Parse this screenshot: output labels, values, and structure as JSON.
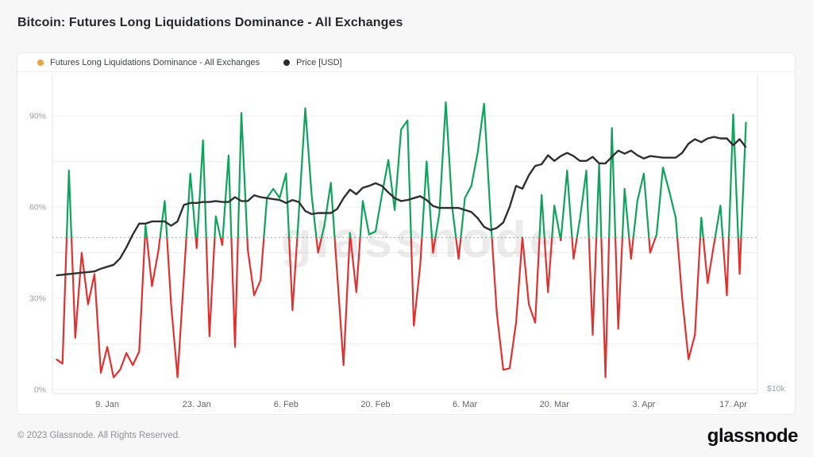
{
  "header": {
    "title": "Bitcoin: Futures Long Liquidations Dominance - All Exchanges"
  },
  "legend": [
    {
      "label": "Futures Long Liquidations Dominance - All Exchanges",
      "color": "#f0a33c"
    },
    {
      "label": "Price [USD]",
      "color": "#2b2b2b"
    }
  ],
  "footer": {
    "copyright": "© 2023 Glassnode. All Rights Reserved.",
    "logo_text": "glassnode"
  },
  "chart_data": {
    "type": "line",
    "title": "Bitcoin: Futures Long Liquidations Dominance - All Exchanges",
    "watermark": "glassnode",
    "x_tick_labels": [
      "9. Jan",
      "23. Jan",
      "6. Feb",
      "20. Feb",
      "6. Mar",
      "20. Mar",
      "3. Apr",
      "17. Apr"
    ],
    "x_tick_day_index": [
      8,
      22,
      36,
      50,
      64,
      78,
      92,
      106
    ],
    "y_left": {
      "unit": "%",
      "tick_labels": [
        "0%",
        "30%",
        "60%",
        "90%"
      ],
      "tick_values": [
        0,
        30,
        60,
        90
      ],
      "grid_values": [
        0,
        15,
        30,
        45,
        60,
        75,
        90
      ],
      "range": [
        0,
        105
      ]
    },
    "y_right": {
      "tick_label": "$10k",
      "scale": "log",
      "base_usd": 10000,
      "pct_per_decade": 170.5
    },
    "threshold_pct": 50,
    "grid": true,
    "legend_position": "top-left",
    "series": [
      {
        "name": "Futures Long Liquidations Dominance - All Exchanges",
        "unit": "%",
        "style": "threshold-line",
        "color_above": "#0fa35e",
        "color_below": "#e03131",
        "threshold": 50,
        "values": [
          10,
          8.5,
          72,
          17,
          45,
          28,
          38,
          5.5,
          14,
          4,
          6.5,
          12,
          8,
          12.5,
          54,
          34,
          45.5,
          62,
          28,
          4,
          37,
          71,
          46.5,
          82,
          17.5,
          57,
          47.5,
          77,
          14,
          91,
          46,
          31,
          36,
          63,
          66,
          63,
          71,
          26,
          58,
          92.5,
          64,
          45,
          54,
          68,
          38,
          8,
          51.5,
          32,
          62,
          51,
          52,
          64,
          75.5,
          59,
          85.5,
          88.5,
          21,
          41,
          75,
          45,
          58,
          94.5,
          60,
          43,
          63,
          67,
          78,
          94,
          57,
          25,
          6.5,
          7,
          22,
          50,
          28,
          22,
          64,
          32,
          60.5,
          49,
          72,
          43,
          56,
          72,
          18,
          74,
          4,
          86,
          20,
          66,
          43,
          62,
          71,
          45,
          51,
          73,
          65,
          56.5,
          30,
          10,
          18,
          56.5,
          35,
          48,
          60.5,
          31,
          90.5,
          38,
          88
        ]
      },
      {
        "name": "Price [USD]",
        "unit": "USD",
        "style": "line",
        "color": "#2e2f31",
        "values": [
          16600,
          16650,
          16700,
          16750,
          16800,
          16850,
          16900,
          17100,
          17250,
          17400,
          17900,
          18800,
          19900,
          20900,
          20900,
          21100,
          21100,
          21100,
          20700,
          21100,
          22700,
          22900,
          22900,
          23000,
          23000,
          23100,
          23000,
          23000,
          23500,
          23100,
          23100,
          23700,
          23500,
          23400,
          23300,
          23200,
          22900,
          23200,
          23000,
          22100,
          21800,
          21900,
          21900,
          21900,
          22300,
          23400,
          24300,
          23800,
          24500,
          24700,
          25000,
          24700,
          24000,
          23400,
          23100,
          23200,
          23400,
          23600,
          23200,
          22600,
          22400,
          22400,
          22400,
          22400,
          22200,
          22000,
          21400,
          20600,
          20300,
          20500,
          21000,
          22500,
          24700,
          24400,
          25900,
          27000,
          27200,
          28300,
          27600,
          28200,
          28600,
          28200,
          27600,
          27600,
          28100,
          27300,
          27300,
          28100,
          28900,
          28500,
          28900,
          28300,
          27900,
          28200,
          28100,
          28000,
          28000,
          28000,
          28600,
          29800,
          30400,
          30000,
          30500,
          30700,
          30500,
          30500,
          29600,
          30400,
          29300
        ]
      }
    ]
  }
}
